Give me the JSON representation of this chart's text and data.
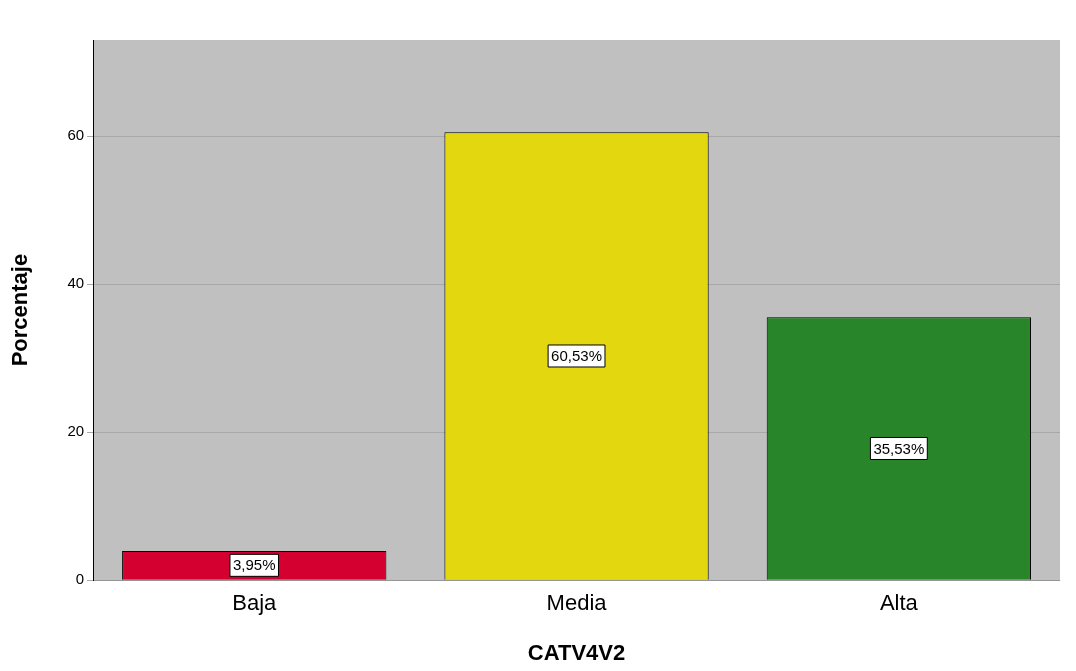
{
  "chart_data": {
    "type": "bar",
    "xlabel": "CATV4V2",
    "ylabel": "Porcentaje",
    "categories": [
      "Baja",
      "Media",
      "Alta"
    ],
    "values": [
      3.95,
      60.53,
      35.53
    ],
    "colors": [
      "#d40030",
      "#e3d710",
      "#29852a"
    ],
    "value_labels": [
      "3,95%",
      "60,53%",
      "35,53%"
    ],
    "ylim": [
      0,
      73
    ],
    "yticks": [
      0,
      20,
      40,
      60
    ],
    "grid": "y",
    "legend": false
  }
}
